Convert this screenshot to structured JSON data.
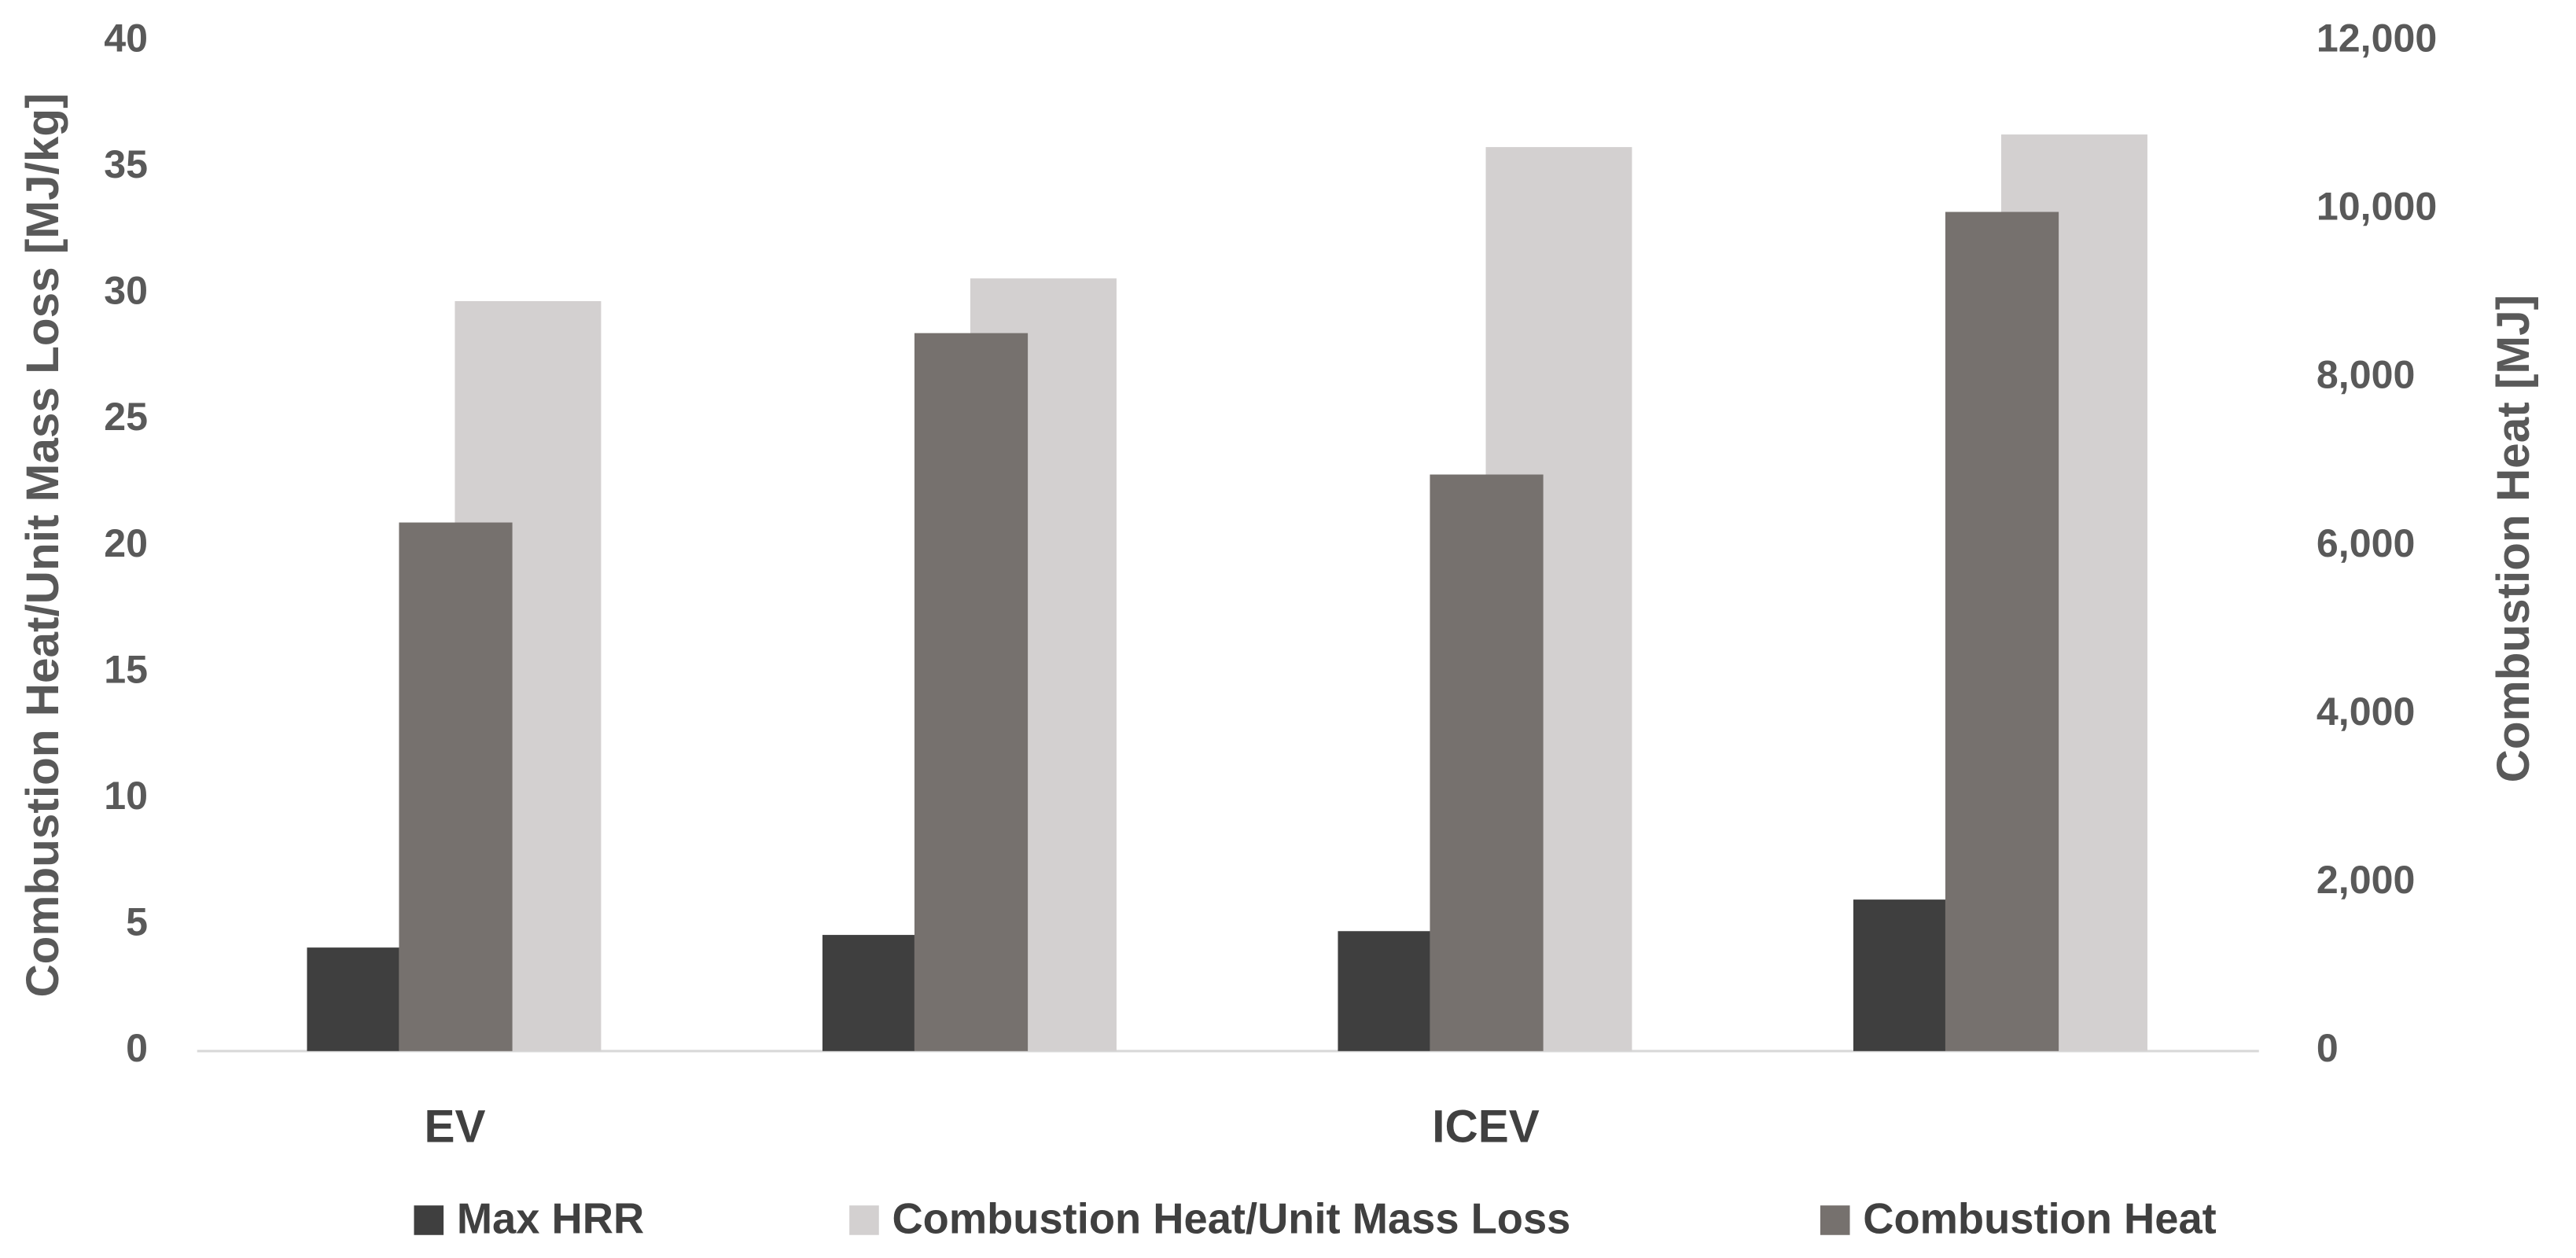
{
  "chart_data": {
    "type": "bar",
    "categories": [
      "EV",
      null,
      "ICEV",
      null
    ],
    "series": [
      {
        "name": "Max HRR",
        "color": "#3f3f3f",
        "values": [
          4.1,
          4.6,
          4.75,
          6.0
        ]
      },
      {
        "name": "Combustion Heat/Unit Mass Loss",
        "color": "#d3d0d0",
        "values": [
          29.7,
          30.6,
          35.8,
          36.3
        ]
      },
      {
        "name": "Combustion Heat",
        "color": "#76716e",
        "axis": "y2",
        "values": [
          6280,
          8530,
          6850,
          9970
        ]
      }
    ],
    "ylabel": "Combustion Heat/Unit Mass Loss [MJ/kg]",
    "y2label": "Combustion Heat [MJ]",
    "ylim": [
      0,
      40
    ],
    "yticks": [
      0,
      5,
      10,
      15,
      20,
      25,
      30,
      35,
      40
    ],
    "y2lim": [
      0,
      12000
    ],
    "y2ticks": [
      0,
      {
        "value": 2000,
        "label": "2,000"
      },
      {
        "value": 4000,
        "label": "4,000"
      },
      {
        "value": 6000,
        "label": "6,000"
      },
      {
        "value": 8000,
        "label": "8,000"
      },
      {
        "value": 10000,
        "label": "10,000"
      },
      {
        "value": 12000,
        "label": "12,000"
      }
    ],
    "legend": "bottom"
  }
}
